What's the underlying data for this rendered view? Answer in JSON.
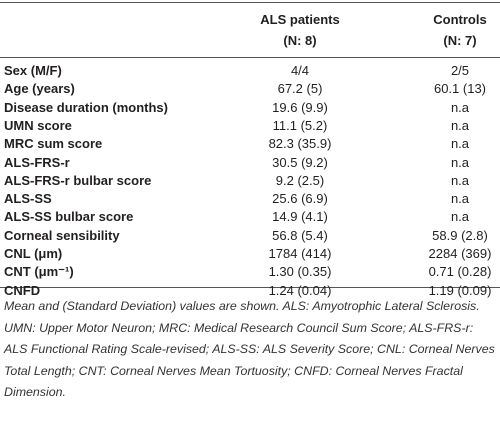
{
  "table": {
    "header": [
      "ALS patients",
      "(N: 8)",
      "Controls",
      "(N: 7)"
    ],
    "rows": [
      [
        "Sex (M/F)",
        "4/4",
        "2/5"
      ],
      [
        "Age (years)",
        "67.2 (5)",
        "60.1 (13)"
      ],
      [
        "Disease duration (months)",
        "19.6 (9.9)",
        "n.a"
      ],
      [
        "UMN score",
        "11.1 (5.2)",
        "n.a"
      ],
      [
        "MRC sum score",
        "82.3 (35.9)",
        "n.a"
      ],
      [
        "ALS-FRS-r",
        "30.5 (9.2)",
        "n.a"
      ],
      [
        "ALS-FRS-r bulbar score",
        "9.2 (2.5)",
        "n.a"
      ],
      [
        "ALS-SS",
        "25.6 (6.9)",
        "n.a"
      ],
      [
        "ALS-SS bulbar score",
        "14.9 (4.1)",
        "n.a"
      ],
      [
        "Corneal sensibility",
        "56.8 (5.4)",
        "58.9 (2.8)"
      ],
      [
        "CNL (μm)",
        "1784 (414)",
        "2284 (369)"
      ],
      [
        "CNT (μm⁻¹)",
        "1.30 (0.35)",
        "0.71 (0.28)"
      ],
      [
        "CNFD",
        "1.24 (0.04)",
        "1.19 (0.09)"
      ]
    ],
    "footnote": "Mean and (Standard Deviation) values are shown. ALS: Amyotrophic Lateral Sclerosis. UMN: Upper Motor Neuron; MRC: Medical Research Council Sum Score; ALS-FRS-r: ALS Functional Rating Scale-revised; ALS-SS: ALS Severity Score; CNL: Corneal Nerves Total Length; CNT: Corneal Nerves Mean Tortuosity; CNFD: Corneal Nerves Fractal Dimension."
  }
}
